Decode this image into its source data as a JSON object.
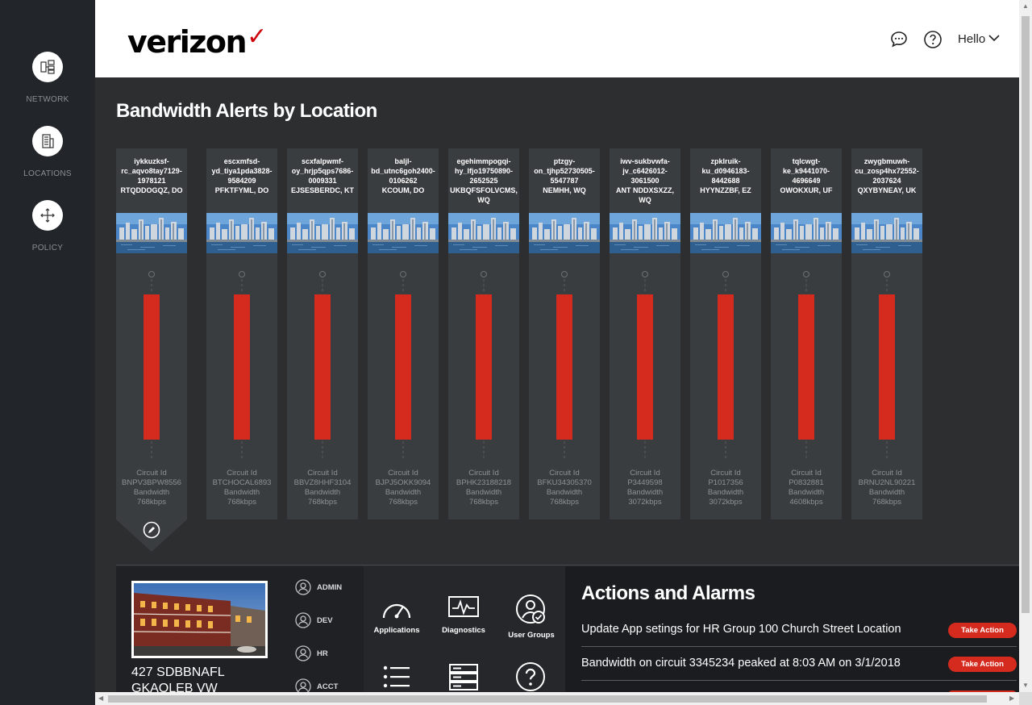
{
  "sidebar": {
    "items": [
      {
        "label": "NETWORK",
        "icon": "network-icon"
      },
      {
        "label": "LOCATIONS",
        "icon": "building-icon"
      },
      {
        "label": "POLICY",
        "icon": "move-arrows-icon"
      }
    ]
  },
  "header": {
    "logo": "verizon",
    "logo_mark": "✓",
    "icons": [
      "chat-icon",
      "help-icon"
    ],
    "user_menu_label": "Hello"
  },
  "main": {
    "title": "Bandwidth Alerts by Location",
    "circuit_label": "Circuit Id",
    "bandwidth_label": "Bandwidth",
    "alert_color": "#d52b1e",
    "locations": [
      {
        "line1": "iykkuzksf-",
        "line2": "rc_aqvo8tay7129-",
        "line3": "1978121",
        "line4": "RTQDDOGQZ, DO",
        "line5": "",
        "circuit": "BNPV3BPW8556",
        "bandwidth": "768kbps"
      },
      {
        "line1": "escxmfsd-",
        "line2": "yd_tiya1pda3828-",
        "line3": "9584209",
        "line4": "PFKTFYML, DO",
        "line5": "",
        "circuit": "BTCHOCAL6893",
        "bandwidth": "768kbps"
      },
      {
        "line1": "scxfalpwmf-",
        "line2": "oy_hrjp5qps7686-",
        "line3": "0009331",
        "line4": "EJSESBERDC, KT",
        "line5": "",
        "circuit": "BBVZ8HHF3104",
        "bandwidth": "768kbps"
      },
      {
        "line1": "baljl-",
        "line2": "bd_utnc6goh2400-",
        "line3": "0106262",
        "line4": "KCOUM, DO",
        "line5": "",
        "circuit": "BJPJ5OKK9094",
        "bandwidth": "768kbps"
      },
      {
        "line1": "egehimmpogqi-",
        "line2": "hy_lfjo19750890-",
        "line3": "2652525",
        "line4": "UKBQFSFOLVCMS,",
        "line5": "WQ",
        "circuit": "BPHK23188218",
        "bandwidth": "768kbps"
      },
      {
        "line1": "ptzgy-",
        "line2": "on_tjhp52730505-",
        "line3": "5547787",
        "line4": "NEMHH, WQ",
        "line5": "",
        "circuit": "BFKU34305370",
        "bandwidth": "768kbps"
      },
      {
        "line1": "iwv-sukbvwfa-",
        "line2": "jv_c6426012-",
        "line3": "3061500",
        "line4": "ANT NDDXSXZZ,",
        "line5": "WQ",
        "circuit": "P3449598",
        "bandwidth": "3072kbps"
      },
      {
        "line1": "zpklruik-",
        "line2": "ku_d0946183-",
        "line3": "8442688",
        "line4": "HYYNZZBF, EZ",
        "line5": "",
        "circuit": "P1017356",
        "bandwidth": "3072kbps"
      },
      {
        "line1": "tqlcwgt-",
        "line2": "ke_k9441070-",
        "line3": "4696649",
        "line4": "OWOKXUR, UF",
        "line5": "",
        "circuit": "P0832881",
        "bandwidth": "4608kbps"
      },
      {
        "line1": "zwygbmuwh-",
        "line2": "cu_zosp4hx72552-",
        "line3": "2037624",
        "line4": "QXYBYNEAY, UK",
        "line5": "",
        "circuit": "BRNU2NL90221",
        "bandwidth": "768kbps"
      }
    ]
  },
  "detail": {
    "address_line1": "427 SDBBNAFL",
    "address_line2": "GKAOLEB VW",
    "roles": [
      "ADMIN",
      "DEV",
      "HR",
      "ACCT"
    ],
    "tools": [
      {
        "label": "Applications",
        "icon": "speedometer-icon"
      },
      {
        "label": "Diagnostics",
        "icon": "pulse-monitor-icon"
      },
      {
        "label": "User Groups",
        "icon": "user-group-icon"
      },
      {
        "label": "",
        "icon": "list-icon"
      },
      {
        "label": "",
        "icon": "server-icon"
      },
      {
        "label": "",
        "icon": "question-circle-icon"
      }
    ]
  },
  "alarms": {
    "title": "Actions and Alarms",
    "action_label": "Take Action",
    "items": [
      {
        "text": "Update App setings for HR Group 100 Church Street Location"
      },
      {
        "text": "Bandwidth on circuit 3345234 peaked at 8:03 AM on 3/1/2018"
      }
    ]
  }
}
